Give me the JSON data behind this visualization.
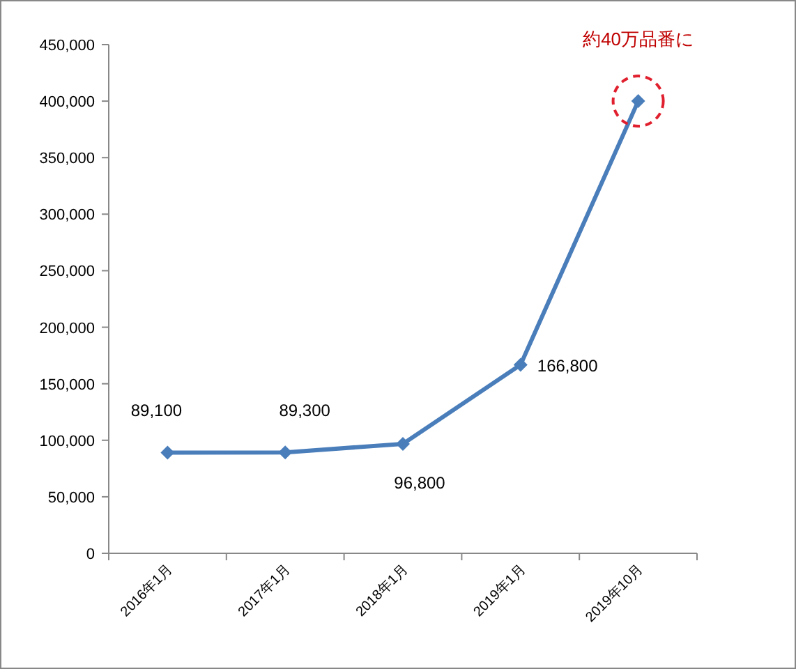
{
  "chart_data": {
    "type": "line",
    "categories": [
      "2016年1月",
      "2017年1月",
      "2018年1月",
      "2019年1月",
      "2019年10月"
    ],
    "series": [
      {
        "color": "#4a7ebb",
        "values": [
          89100,
          89300,
          96800,
          166800,
          400000
        ]
      }
    ],
    "value_labels": [
      "89,100",
      "89,300",
      "96,800",
      "166,800",
      null
    ],
    "annotations": [
      {
        "text": "約40万品番に",
        "x": "2019年10月",
        "y": 400000
      }
    ],
    "ylim": [
      0,
      450000
    ],
    "yticks": [
      0,
      {
        "value": 50000,
        "label": "50,000"
      },
      {
        "value": 100000,
        "label": "100,000"
      },
      {
        "value": 150000,
        "label": "150,000"
      },
      {
        "value": 200000,
        "label": "200,000"
      },
      {
        "value": 250000,
        "label": "250,000"
      },
      {
        "value": 300000,
        "label": "300,000"
      },
      {
        "value": 350000,
        "label": "350,000"
      },
      {
        "value": 400000,
        "label": "400,000"
      },
      {
        "value": 450000,
        "label": "450,000"
      }
    ],
    "grid": false,
    "marker": "diamond",
    "line_style": "solid"
  }
}
